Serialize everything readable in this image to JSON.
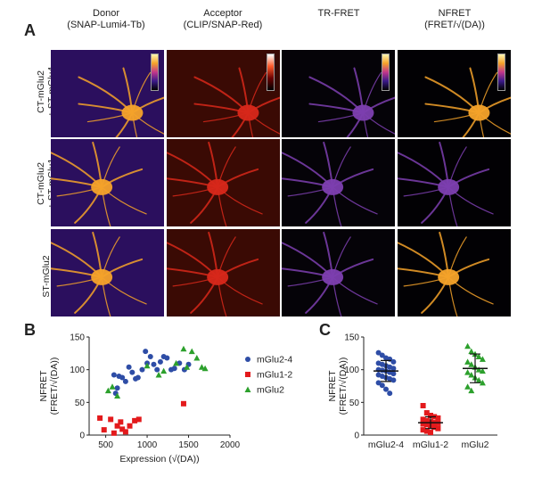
{
  "panel_a": {
    "letter": "A",
    "columns": [
      {
        "line1": "Donor",
        "line2": "(SNAP-Lumi4-Tb)"
      },
      {
        "line1": "Acceptor",
        "line2": "(CLIP/SNAP-Red)"
      },
      {
        "line1": "TR-FRET",
        "line2": ""
      },
      {
        "line1": "NFRET",
        "line2": "(FRET/√(DA))"
      }
    ],
    "rows": [
      {
        "line1": "CT-mGlu2",
        "line2": "+ ST-mGlu4"
      },
      {
        "line1": "CT-mGlu2",
        "line2": "+ ST-mGlu1"
      },
      {
        "line1": "ST-mGlu2",
        "line2": ""
      }
    ],
    "colors": {
      "donor": "#2b0f5e",
      "acceptor": "#3a0a04",
      "fret": "#050308",
      "nfret": "#020104",
      "neuron_warm": "#f5a32a",
      "neuron_red": "#d8281a",
      "neuron_purple": "#7d3fb0"
    }
  },
  "panel_b": {
    "letter": "B",
    "chart_data": {
      "type": "scatter",
      "ylabel": "NFRET (FRET/√(DA))",
      "xlabel": "Expression (√(DA))",
      "xlim": [
        300,
        2000
      ],
      "ylim": [
        0,
        150
      ],
      "x_ticks": [
        "500",
        "1000",
        "1500",
        "2000"
      ],
      "y_ticks": [
        "0",
        "50",
        "100",
        "150"
      ],
      "legend_position": "right",
      "series": [
        {
          "name": "mGlu2-4",
          "color": "#2e4da6",
          "marker": "circle",
          "points": [
            [
              600,
              92
            ],
            [
              660,
              90
            ],
            [
              700,
              88
            ],
            [
              740,
              82
            ],
            [
              780,
              104
            ],
            [
              820,
              96
            ],
            [
              860,
              86
            ],
            [
              890,
              88
            ],
            [
              940,
              100
            ],
            [
              980,
              128
            ],
            [
              1000,
              110
            ],
            [
              1040,
              120
            ],
            [
              1080,
              108
            ],
            [
              1120,
              100
            ],
            [
              1160,
              112
            ],
            [
              1200,
              120
            ],
            [
              1240,
              118
            ],
            [
              1290,
              100
            ],
            [
              1330,
              102
            ],
            [
              1390,
              110
            ],
            [
              1450,
              100
            ],
            [
              1500,
              108
            ],
            [
              640,
              72
            ],
            [
              620,
              64
            ]
          ]
        },
        {
          "name": "mGlu1-2",
          "color": "#e31a1c",
          "marker": "square",
          "points": [
            [
              430,
              26
            ],
            [
              480,
              8
            ],
            [
              560,
              24
            ],
            [
              600,
              3
            ],
            [
              640,
              14
            ],
            [
              680,
              20
            ],
            [
              700,
              9
            ],
            [
              740,
              5
            ],
            [
              790,
              14
            ],
            [
              850,
              22
            ],
            [
              900,
              24
            ],
            [
              1440,
              48
            ]
          ]
        },
        {
          "name": "mGlu2",
          "color": "#2ca02c",
          "marker": "triangle",
          "points": [
            [
              530,
              68
            ],
            [
              580,
              74
            ],
            [
              640,
              60
            ],
            [
              1000,
              106
            ],
            [
              1140,
              92
            ],
            [
              1200,
              98
            ],
            [
              1350,
              110
            ],
            [
              1440,
              132
            ],
            [
              1480,
              104
            ],
            [
              1540,
              128
            ],
            [
              1600,
              118
            ],
            [
              1660,
              104
            ],
            [
              1700,
              102
            ]
          ]
        }
      ]
    }
  },
  "panel_c": {
    "letter": "C",
    "chart_data": {
      "type": "scatter",
      "ylabel": "NFRET (FRET/√(DA))",
      "categories": [
        "mGlu2-4",
        "mGlu1-2",
        "mGlu2"
      ],
      "ylim": [
        0,
        150
      ],
      "y_ticks": [
        "0",
        "50",
        "100",
        "150"
      ],
      "series": [
        {
          "name": "mGlu2-4",
          "color": "#2e4da6",
          "marker": "circle",
          "mean": 98,
          "sd": 16,
          "values": [
            126,
            122,
            118,
            116,
            112,
            110,
            108,
            106,
            104,
            102,
            100,
            99,
            98,
            96,
            94,
            92,
            90,
            88,
            86,
            84,
            80,
            76,
            70,
            64
          ]
        },
        {
          "name": "mGlu1-2",
          "color": "#e31a1c",
          "marker": "square",
          "mean": 19,
          "sd": 9,
          "values": [
            45,
            34,
            30,
            28,
            26,
            24,
            22,
            20,
            19,
            18,
            17,
            16,
            14,
            12,
            10,
            8,
            6,
            4
          ]
        },
        {
          "name": "mGlu2",
          "color": "#2ca02c",
          "marker": "triangle",
          "mean": 102,
          "sd": 22,
          "values": [
            136,
            128,
            124,
            120,
            116,
            112,
            108,
            104,
            100,
            98,
            96,
            92,
            88,
            84,
            80,
            74,
            68
          ]
        }
      ]
    }
  }
}
